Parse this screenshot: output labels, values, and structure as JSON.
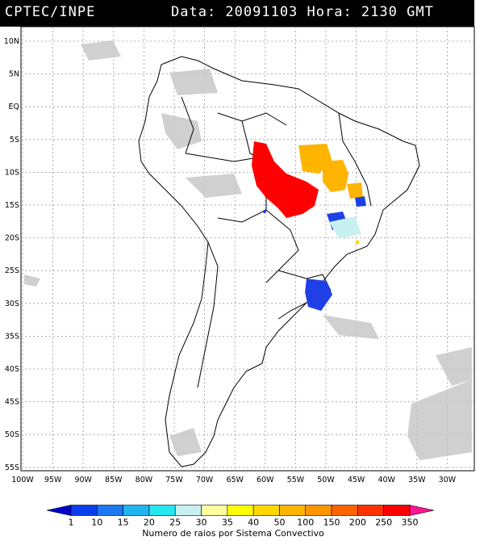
{
  "header": {
    "source": "CPTEC/INPE",
    "datetime": "Data: 20091103 Hora: 2130 GMT"
  },
  "axes": {
    "lat_labels": [
      "10N",
      "5N",
      "EQ",
      "5S",
      "10S",
      "15S",
      "20S",
      "25S",
      "30S",
      "35S",
      "40S",
      "45S",
      "50S",
      "55S"
    ],
    "lon_labels": [
      "100W",
      "95W",
      "90W",
      "85W",
      "80W",
      "75W",
      "70W",
      "65W",
      "60W",
      "55W",
      "50W",
      "45W",
      "40W",
      "35W",
      "30W"
    ]
  },
  "colorbar": {
    "labels": [
      "1",
      "10",
      "15",
      "20",
      "25",
      "30",
      "35",
      "40",
      "50",
      "100",
      "150",
      "200",
      "250",
      "350"
    ],
    "colors": [
      "#0000cc",
      "#0a3ee8",
      "#1e78f0",
      "#20b4f0",
      "#26e6f0",
      "#c8f0f0",
      "#ffffa0",
      "#ffff00",
      "#ffd700",
      "#ffb400",
      "#ff9600",
      "#ff6400",
      "#ff3200",
      "#ff0000",
      "#ff1493"
    ],
    "title": "Numero de raios por Sistema Convectivo"
  },
  "systems": [
    {
      "color": "#ff0000",
      "label": "350"
    },
    {
      "color": "#ffb400",
      "label": "100"
    },
    {
      "color": "#1e40e6",
      "label": "10"
    },
    {
      "color": "#c8f0f0",
      "label": "30"
    }
  ]
}
